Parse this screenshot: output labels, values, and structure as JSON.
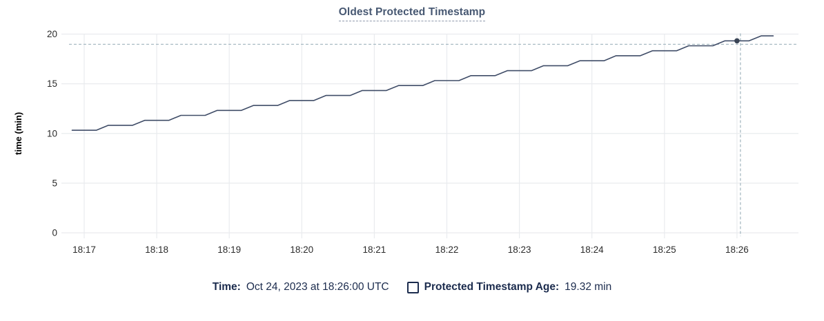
{
  "title": "Oldest Protected Timestamp",
  "hover": {
    "time_prefix": "Time:",
    "time_value": "Oct 24, 2023 at 18:26:00 UTC",
    "series_label": "Protected Timestamp Age:",
    "value_label": "19.32 min",
    "time": "18:26:00",
    "value": 19.32
  },
  "colors": {
    "title": "#475872",
    "title_underline": "#8d97ab",
    "line": "#3f4c67",
    "dot": "#394455",
    "grid": "#e9ebee",
    "tick_text": "#2b2b2b",
    "axis_label": "#000000",
    "crosshair": "#9fb3bd",
    "legend_text": "#1b2b4d"
  },
  "chart_data": {
    "type": "line",
    "title": "Oldest Protected Timestamp",
    "xlabel": "",
    "ylabel": "time (min)",
    "ylim": [
      0,
      20
    ],
    "y_ticks": [
      0,
      5,
      10,
      15,
      20
    ],
    "x_ticks": [
      "18:17",
      "18:18",
      "18:19",
      "18:20",
      "18:21",
      "18:22",
      "18:23",
      "18:24",
      "18:25",
      "18:26"
    ],
    "grid": true,
    "legend_position": "bottom",
    "hover_point": {
      "time": "18:26:00",
      "value": 19.32
    },
    "series": [
      {
        "name": "Protected Timestamp Age",
        "unit": "min",
        "start_time": "18:16:50",
        "interval_sec": 10,
        "values": [
          10.32,
          10.32,
          10.32,
          10.82,
          10.82,
          10.82,
          11.32,
          11.32,
          11.32,
          11.82,
          11.82,
          11.82,
          12.32,
          12.32,
          12.32,
          12.82,
          12.82,
          12.82,
          13.32,
          13.32,
          13.32,
          13.82,
          13.82,
          13.82,
          14.32,
          14.32,
          14.32,
          14.82,
          14.82,
          14.82,
          15.32,
          15.32,
          15.32,
          15.82,
          15.82,
          15.82,
          16.32,
          16.32,
          16.32,
          16.82,
          16.82,
          16.82,
          17.32,
          17.32,
          17.32,
          17.82,
          17.82,
          17.82,
          18.32,
          18.32,
          18.32,
          18.82,
          18.82,
          18.82,
          19.32,
          19.32,
          19.32,
          19.82,
          19.82
        ]
      }
    ]
  }
}
